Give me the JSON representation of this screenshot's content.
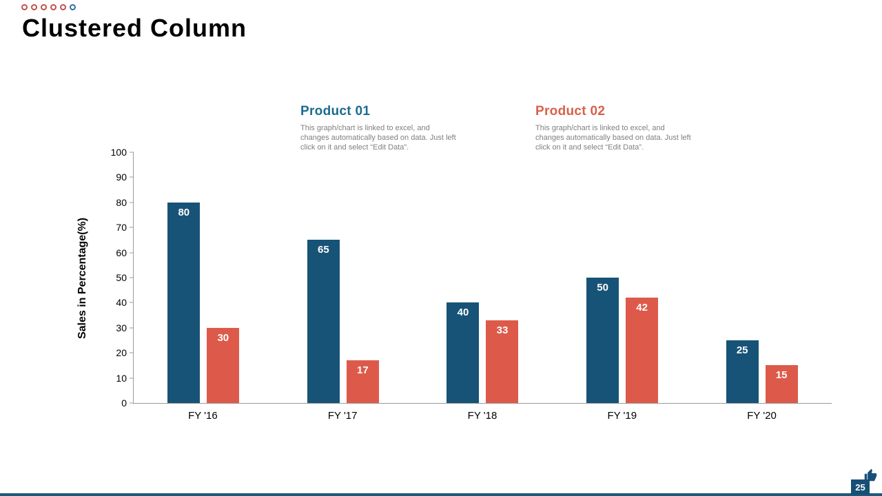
{
  "slide": {
    "title": "Clustered Column",
    "decorative_circle_colors": [
      "#C0504D",
      "#C0504D",
      "#C0504D",
      "#C0504D",
      "#C0504D",
      "#2E6E9E"
    ]
  },
  "legend": {
    "product1": {
      "name": "Product 01",
      "color": "#1B6B90",
      "description": "This graph/chart is linked to excel, and changes automatically based on data. Just left click on it and select “Edit Data”."
    },
    "product2": {
      "name": "Product 02",
      "color": "#D95F4C",
      "description": "This graph/chart is linked to excel, and changes automatically based on data. Just left click on it and select “Edit Data”."
    }
  },
  "chart_data": {
    "type": "bar",
    "title": "Clustered Column",
    "categories": [
      "FY '16",
      "FY '17",
      "FY '18",
      "FY '19",
      "FY '20"
    ],
    "series": [
      {
        "name": "Product 01",
        "color": "#175377",
        "values": [
          80,
          65,
          40,
          50,
          25
        ]
      },
      {
        "name": "Product 02",
        "color": "#DD5A4A",
        "values": [
          30,
          17,
          33,
          42,
          15
        ]
      }
    ],
    "xlabel": "",
    "ylabel": "Sales in Percentage(%)",
    "ylim": [
      0,
      100
    ],
    "yticks": [
      0,
      10,
      20,
      30,
      40,
      50,
      60,
      70,
      80,
      90,
      100
    ],
    "grid": false,
    "legend_position": "above-chart",
    "value_labels": "inside-top-white"
  },
  "footer": {
    "page_number": "25",
    "badge_color": "#174F76",
    "strip_color": "#1B5A7A"
  }
}
